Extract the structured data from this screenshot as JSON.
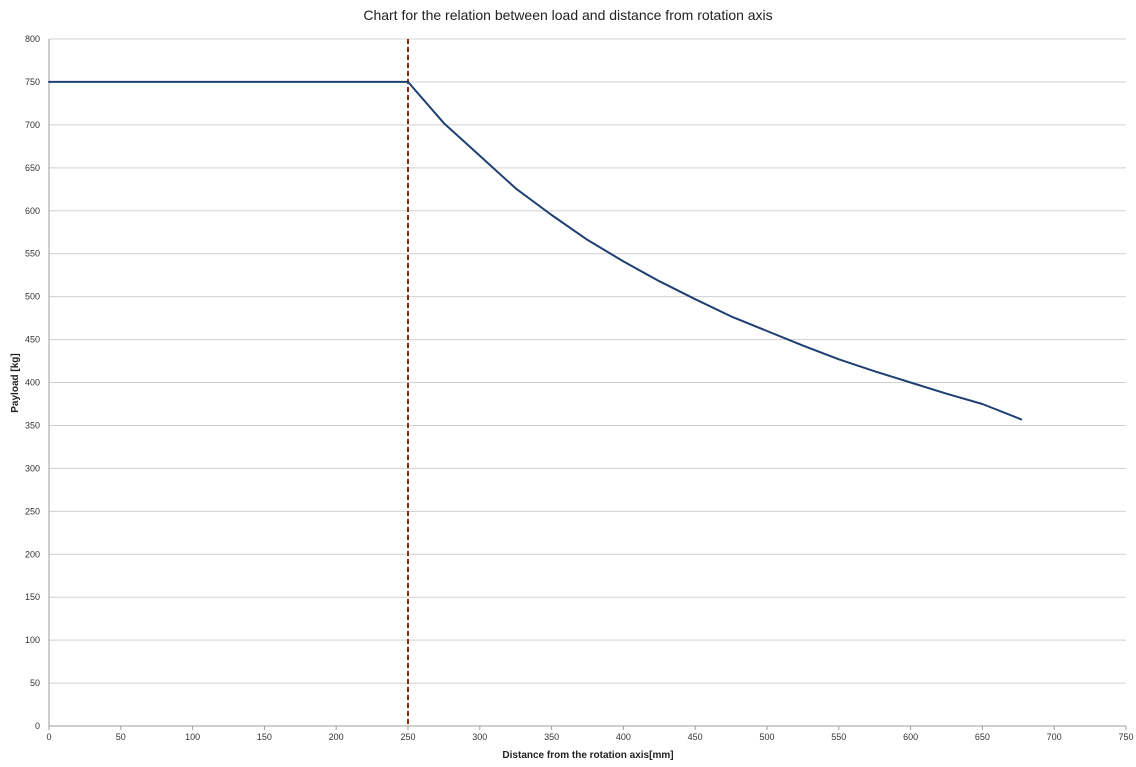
{
  "chart_data": {
    "type": "line",
    "title": "Chart for the relation between load and distance from rotation axis",
    "xlabel": "Distance from the rotation axis[mm]",
    "ylabel": "Payload [kg]",
    "xlim": [
      0,
      750
    ],
    "ylim": [
      0,
      800
    ],
    "x_ticks": [
      0,
      50,
      100,
      150,
      200,
      250,
      300,
      350,
      400,
      450,
      500,
      550,
      600,
      650,
      700,
      750
    ],
    "y_ticks": [
      0,
      50,
      100,
      150,
      200,
      250,
      300,
      350,
      400,
      450,
      500,
      550,
      600,
      650,
      700,
      750,
      800
    ],
    "grid": "horizontal",
    "legend": "none",
    "series": [
      {
        "color": "#1f3f73",
        "x": [
          0,
          250,
          275,
          300,
          325,
          350,
          375,
          400,
          425,
          450,
          475,
          500,
          525,
          550,
          575,
          600,
          625,
          650,
          677
        ],
        "y": [
          750,
          750,
          702,
          664,
          626,
          595,
          566,
          541,
          518,
          497,
          477,
          460,
          443,
          427,
          413,
          400,
          387,
          375,
          357
        ]
      }
    ],
    "reference_lines": [
      {
        "axis": "x",
        "value": 250,
        "style": "dashed",
        "color": "#8b2d00"
      }
    ]
  }
}
